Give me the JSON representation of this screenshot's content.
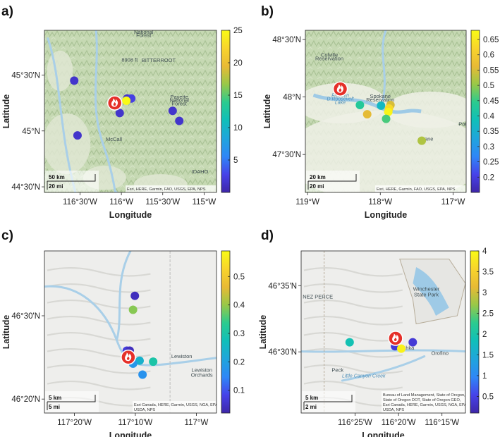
{
  "colormap": [
    "#3e26a8",
    "#4742e9",
    "#2e87f7",
    "#1fa5dc",
    "#10bfb9",
    "#2bcb8f",
    "#98c848",
    "#e8ba35",
    "#f8d42c",
    "#f9fb15"
  ],
  "fire_icon": "fire-marker-icon",
  "chart_data": [
    {
      "panel": "a)",
      "type": "scatter",
      "xlabel": "Longitude",
      "ylabel": "Latitude",
      "basemap": "terrain",
      "xlim": [
        -116.93,
        -114.85
      ],
      "ylim": [
        44.45,
        45.9
      ],
      "x_ticks": [
        -116.5,
        -116.0,
        -115.5,
        -115.0
      ],
      "x_tick_labels": [
        "116°30'W",
        "116°W",
        "115°30'W",
        "115°W"
      ],
      "y_ticks": [
        44.5,
        45.0,
        45.5
      ],
      "y_tick_labels": [
        "44°30'N",
        "45°N",
        "45°30'N"
      ],
      "colorbar": {
        "min": 0,
        "max": 25,
        "ticks": [
          5,
          10,
          15,
          20,
          25
        ],
        "labels": [
          "5",
          "10",
          "15",
          "20",
          "25"
        ]
      },
      "fire": {
        "x": -116.08,
        "y": 45.25
      },
      "points": [
        {
          "x": -116.57,
          "y": 45.45,
          "value": 1.5
        },
        {
          "x": -115.93,
          "y": 45.29,
          "value": 1.5
        },
        {
          "x": -115.88,
          "y": 45.29,
          "value": 2.5
        },
        {
          "x": -115.94,
          "y": 45.27,
          "value": 25
        },
        {
          "x": -116.02,
          "y": 45.16,
          "value": 1.5
        },
        {
          "x": -115.38,
          "y": 45.18,
          "value": 1.5
        },
        {
          "x": -115.3,
          "y": 45.09,
          "value": 1.5
        },
        {
          "x": -116.53,
          "y": 44.96,
          "value": 1.5
        }
      ],
      "map_labels": [
        {
          "text": "National",
          "x": -115.73,
          "y": 45.87
        },
        {
          "text": "Forest",
          "x": -115.73,
          "y": 45.84
        },
        {
          "text": "BITTERROOT",
          "x": -115.55,
          "y": 45.615
        },
        {
          "text": "8908 ft",
          "x": -115.9,
          "y": 45.62
        },
        {
          "text": "Payette",
          "x": -115.3,
          "y": 45.29
        },
        {
          "text": "National",
          "x": -115.3,
          "y": 45.26
        },
        {
          "text": "Forest",
          "x": -115.3,
          "y": 45.23
        },
        {
          "text": "McCall",
          "x": -116.09,
          "y": 44.91
        },
        {
          "text": "IDAHO",
          "x": -115.05,
          "y": 44.62
        }
      ],
      "scale": {
        "km": "50 km",
        "mi": "20 mi"
      },
      "attribution": [
        "Esri, HERE, Garmin, FAO, USGS, EPA, NPS"
      ]
    },
    {
      "panel": "b)",
      "type": "scatter",
      "xlabel": "Longitude",
      "ylabel": "Latitude",
      "basemap": "terrain",
      "xlim": [
        -119.03,
        -116.82
      ],
      "ylim": [
        47.17,
        48.58
      ],
      "x_ticks": [
        -119.0,
        -118.0,
        -117.0
      ],
      "x_tick_labels": [
        "119°W",
        "118°W",
        "117°W"
      ],
      "y_ticks": [
        47.5,
        48.0,
        48.5
      ],
      "y_tick_labels": [
        "47°30'N",
        "48°N",
        "48°30'N"
      ],
      "colorbar": {
        "min": 0.15,
        "max": 0.68,
        "ticks": [
          0.2,
          0.25,
          0.3,
          0.35,
          0.4,
          0.45,
          0.5,
          0.55,
          0.6,
          0.65
        ],
        "labels": [
          "0.2",
          "0.25",
          "0.3",
          "0.35",
          "0.4",
          "0.45",
          "0.5",
          "0.55",
          "0.6",
          "0.65"
        ]
      },
      "fire": {
        "x": -118.55,
        "y": 48.07
      },
      "points": [
        {
          "x": -118.28,
          "y": 47.93,
          "value": 0.43
        },
        {
          "x": -118.18,
          "y": 47.85,
          "value": 0.56
        },
        {
          "x": -117.99,
          "y": 47.925,
          "value": 0.37
        },
        {
          "x": -117.86,
          "y": 47.93,
          "value": 0.55
        },
        {
          "x": -117.88,
          "y": 47.9,
          "value": 0.63
        },
        {
          "x": -117.89,
          "y": 47.87,
          "value": 0.67
        },
        {
          "x": -117.92,
          "y": 47.81,
          "value": 0.46
        },
        {
          "x": -117.43,
          "y": 47.62,
          "value": 0.52
        }
      ],
      "map_labels": [
        {
          "text": "Colville",
          "x": -118.7,
          "y": 48.35
        },
        {
          "text": "Reservation",
          "x": -118.7,
          "y": 48.32
        },
        {
          "text": "Spokane",
          "x": -118.0,
          "y": 47.99
        },
        {
          "text": "Reservation",
          "x": -118.0,
          "y": 47.96
        },
        {
          "text": "okane",
          "x": -117.37,
          "y": 47.62
        },
        {
          "text": "Pot",
          "x": -116.87,
          "y": 47.75
        }
      ],
      "water_labels": [
        {
          "text": "Franklin",
          "x": -118.55,
          "y": 48.0
        },
        {
          "text": "D Roosevelt",
          "x": -118.55,
          "y": 47.97
        },
        {
          "text": "Lake",
          "x": -118.55,
          "y": 47.94
        }
      ],
      "scale": {
        "km": "20 km",
        "mi": "20 mi"
      },
      "attribution": [
        "Esri, HERE, Garmin, FAO, USGS, EPA, NPS"
      ]
    },
    {
      "panel": "c)",
      "type": "scatter",
      "xlabel": "Longitude",
      "ylabel": "Latitude",
      "basemap": "light",
      "xlim": [
        -117.415,
        -116.945
      ],
      "ylim": [
        46.305,
        46.63
      ],
      "x_ticks": [
        -117.333,
        -117.1667,
        -117.0
      ],
      "x_tick_labels": [
        "117°20'W",
        "117°10'W",
        "117°W"
      ],
      "y_ticks": [
        46.333,
        46.5
      ],
      "y_tick_labels": [
        "46°20'N",
        "46°30'N"
      ],
      "colorbar": {
        "min": 0.02,
        "max": 0.59,
        "ticks": [
          0.1,
          0.2,
          0.3,
          0.4,
          0.5
        ],
        "labels": [
          "0.1",
          "0.2",
          "0.3",
          "0.4",
          "0.5"
        ]
      },
      "fire": {
        "x": -117.186,
        "y": 46.417
      },
      "points": [
        {
          "x": -117.168,
          "y": 46.54,
          "value": 0.04
        },
        {
          "x": -117.173,
          "y": 46.512,
          "value": 0.39
        },
        {
          "x": -117.19,
          "y": 46.43,
          "value": 0.07
        },
        {
          "x": -117.182,
          "y": 46.43,
          "value": 0.04
        },
        {
          "x": -117.155,
          "y": 46.41,
          "value": 0.24
        },
        {
          "x": -117.173,
          "y": 46.404,
          "value": 0.18
        },
        {
          "x": -117.118,
          "y": 46.408,
          "value": 0.3
        },
        {
          "x": -117.147,
          "y": 46.382,
          "value": 0.17
        }
      ],
      "map_labels": [
        {
          "text": "Lewiston",
          "x": -117.04,
          "y": 46.415
        },
        {
          "text": "Lewiston",
          "x": -116.985,
          "y": 46.388
        },
        {
          "text": "Orchards",
          "x": -116.985,
          "y": 46.378
        }
      ],
      "scale": {
        "km": "5 km",
        "mi": "5 mi"
      },
      "attribution": [
        "Esri Canada, HERE, Garmin, USGS, NGA, EPA,",
        "USDA, NPS"
      ]
    },
    {
      "panel": "d)",
      "type": "scatter",
      "xlabel": "Longitude",
      "ylabel": "Latitude",
      "basemap": "light",
      "xlim": [
        -116.52,
        -116.205
      ],
      "ylim": [
        46.423,
        46.627
      ],
      "x_ticks": [
        -116.4167,
        -116.3333,
        -116.25
      ],
      "x_tick_labels": [
        "116°25'W",
        "116°20'W",
        "116°15'W"
      ],
      "y_ticks": [
        46.5,
        46.5833
      ],
      "y_tick_labels": [
        "46°30'N",
        "46°35'N"
      ],
      "colorbar": {
        "min": 0.1,
        "max": 4.0,
        "ticks": [
          0.5,
          1,
          1.5,
          2,
          2.5,
          3,
          3.5,
          4
        ],
        "labels": [
          "0.5",
          "1",
          "1.5",
          "2",
          "2.5",
          "3",
          "3.5",
          "4"
        ]
      },
      "fire": {
        "x": -116.339,
        "y": 46.517
      },
      "points": [
        {
          "x": -116.427,
          "y": 46.512,
          "value": 1.9
        },
        {
          "x": -116.34,
          "y": 46.507,
          "value": 0.4
        },
        {
          "x": -116.328,
          "y": 46.504,
          "value": 3.9
        },
        {
          "x": -116.306,
          "y": 46.512,
          "value": 0.4
        }
      ],
      "map_labels": [
        {
          "text": "NEZ PERCE",
          "x": -116.488,
          "y": 46.567
        },
        {
          "text": "Winchester",
          "x": -116.28,
          "y": 46.577
        },
        {
          "text": "State Park",
          "x": -116.28,
          "y": 46.57
        },
        {
          "text": "Ahsahka",
          "x": -116.323,
          "y": 46.503
        },
        {
          "text": "Orofino",
          "x": -116.254,
          "y": 46.496
        },
        {
          "text": "Peck",
          "x": -116.45,
          "y": 46.475
        }
      ],
      "water_labels": [
        {
          "text": "Little Canyon Creek",
          "x": -116.4,
          "y": 46.468
        }
      ],
      "scale": {
        "km": "5 km",
        "mi": "2 mi"
      },
      "attribution": [
        "Bureau of Land Management, State of Oregon,",
        "State of Oregon DOT, State of Oregon GEO,",
        "Esri Canada, HERE, Garmin, USGS, NGA, EPA,",
        "USDA, NPS"
      ]
    }
  ]
}
